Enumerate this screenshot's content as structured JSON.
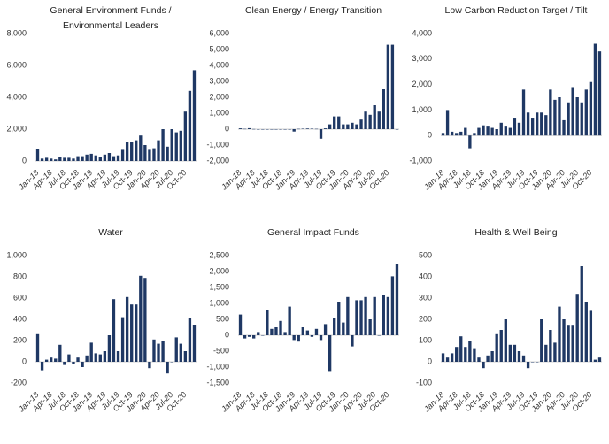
{
  "chart_data": [
    {
      "type": "bar",
      "title": "General  Environment Funds / Environmental Leaders",
      "color": "#1f3864",
      "categories": [
        "Jan-18",
        null,
        null,
        "Apr-18",
        null,
        null,
        "Jul-18",
        null,
        null,
        "Oct-18",
        null,
        null,
        "Jan-19",
        null,
        null,
        "Apr-19",
        null,
        null,
        "Jul-19",
        null,
        null,
        "Oct-19",
        null,
        null,
        "Jan-20",
        null,
        null,
        "Apr-20",
        null,
        null,
        "Jul-20",
        null,
        null,
        "Oct-20",
        null,
        null
      ],
      "values": [
        750,
        150,
        200,
        150,
        100,
        250,
        200,
        200,
        150,
        300,
        300,
        400,
        450,
        350,
        250,
        400,
        500,
        300,
        350,
        700,
        1200,
        1200,
        1300,
        1600,
        1000,
        700,
        800,
        1300,
        2000,
        900,
        2000,
        1800,
        1900,
        3100,
        4400,
        5700
      ],
      "ylim": [
        0,
        8000
      ],
      "yticks": [
        0,
        {
          "value": 2000,
          "label": "2,000"
        },
        {
          "value": 4000,
          "label": "4,000"
        },
        {
          "value": 6000,
          "label": "6,000"
        },
        {
          "value": 8000,
          "label": "8,000"
        }
      ]
    },
    {
      "type": "bar",
      "title": "Clean Energy / Energy Transition",
      "color": "#1f3864",
      "categories": [
        "Jan-18",
        null,
        null,
        "Apr-18",
        null,
        null,
        "Jul-18",
        null,
        null,
        "Oct-18",
        null,
        null,
        "Jan-19",
        null,
        null,
        "Apr-19",
        null,
        null,
        "Jul-19",
        null,
        null,
        "Oct-19",
        null,
        null,
        "Jan-20",
        null,
        null,
        "Apr-20",
        null,
        null,
        "Jul-20",
        null,
        null,
        "Oct-20",
        null,
        null
      ],
      "values": [
        50,
        20,
        60,
        10,
        0,
        0,
        0,
        0,
        0,
        0,
        0,
        0,
        -150,
        20,
        30,
        40,
        30,
        20,
        -600,
        50,
        300,
        800,
        800,
        300,
        300,
        400,
        300,
        600,
        1100,
        900,
        1500,
        1100,
        2500,
        5300,
        5300,
        0
      ],
      "ylim": [
        -2000,
        6000
      ],
      "yticks": [
        {
          "value": -2000,
          "label": "-2,000"
        },
        {
          "value": -1000,
          "label": "-1,000"
        },
        0,
        {
          "value": 1000,
          "label": "1,000"
        },
        {
          "value": 2000,
          "label": "2,000"
        },
        {
          "value": 3000,
          "label": "3,000"
        },
        {
          "value": 4000,
          "label": "4,000"
        },
        {
          "value": 5000,
          "label": "5,000"
        },
        {
          "value": 6000,
          "label": "6,000"
        }
      ]
    },
    {
      "type": "bar",
      "title": "Low Carbon Reduction Target / Tilt",
      "color": "#1f3864",
      "categories": [
        "Jan-18",
        null,
        null,
        "Apr-18",
        null,
        null,
        "Jul-18",
        null,
        null,
        "Oct-18",
        null,
        null,
        "Jan-19",
        null,
        null,
        "Apr-19",
        null,
        null,
        "Jul-19",
        null,
        null,
        "Oct-19",
        null,
        null,
        "Jan-20",
        null,
        null,
        "Apr-20",
        null,
        null,
        "Jul-20",
        null,
        null,
        "Oct-20",
        null,
        null
      ],
      "values": [
        100,
        1000,
        150,
        100,
        150,
        300,
        -500,
        100,
        300,
        400,
        350,
        300,
        250,
        500,
        350,
        300,
        700,
        500,
        1800,
        900,
        700,
        900,
        900,
        800,
        1800,
        1400,
        1500,
        600,
        1300,
        1900,
        1500,
        1300,
        1800,
        2100,
        3600,
        3300
      ],
      "ylim": [
        -1000,
        4000
      ],
      "yticks": [
        {
          "value": -1000,
          "label": "-1,000"
        },
        0,
        {
          "value": 1000,
          "label": "1,000"
        },
        {
          "value": 2000,
          "label": "2,000"
        },
        {
          "value": 3000,
          "label": "3,000"
        },
        {
          "value": 4000,
          "label": "4,000"
        }
      ]
    },
    {
      "type": "bar",
      "title": "Water",
      "color": "#1f3864",
      "categories": [
        "Jan-18",
        null,
        null,
        "Apr-18",
        null,
        null,
        "Jul-18",
        null,
        null,
        "Oct-18",
        null,
        null,
        "Jan-19",
        null,
        null,
        "Apr-19",
        null,
        null,
        "Jul-19",
        null,
        null,
        "Oct-19",
        null,
        null,
        "Jan-20",
        null,
        null,
        "Apr-20",
        null,
        null,
        "Jul-20",
        null,
        null,
        "Oct-20",
        null,
        null
      ],
      "values": [
        260,
        -80,
        20,
        40,
        30,
        160,
        -30,
        70,
        -20,
        40,
        -50,
        60,
        180,
        80,
        70,
        100,
        250,
        590,
        100,
        420,
        610,
        540,
        540,
        810,
        790,
        -60,
        210,
        170,
        200,
        -110,
        0,
        230,
        170,
        100,
        410,
        350
      ],
      "ylim": [
        -200,
        1000
      ],
      "yticks": [
        -200,
        0,
        200,
        400,
        600,
        800,
        {
          "value": 1000,
          "label": "1,000"
        }
      ]
    },
    {
      "type": "bar",
      "title": "General Impact Funds",
      "color": "#1f3864",
      "categories": [
        "Jan-18",
        null,
        null,
        "Apr-18",
        null,
        null,
        "Jul-18",
        null,
        null,
        "Oct-18",
        null,
        null,
        "Jan-19",
        null,
        null,
        "Apr-19",
        null,
        null,
        "Jul-19",
        null,
        null,
        "Oct-19",
        null,
        null,
        "Jan-20",
        null,
        null,
        "Apr-20",
        null,
        null,
        "Jul-20",
        null,
        null,
        "Oct-20",
        null,
        null
      ],
      "values": [
        650,
        -100,
        -50,
        -100,
        100,
        0,
        800,
        200,
        250,
        450,
        100,
        900,
        -150,
        -200,
        250,
        150,
        -50,
        200,
        -150,
        350,
        -1150,
        550,
        1050,
        400,
        1200,
        -350,
        1100,
        1100,
        1200,
        500,
        1200,
        0,
        1250,
        1200,
        1850,
        2250
      ],
      "ylim": [
        -1500,
        2500
      ],
      "yticks": [
        {
          "value": -1500,
          "label": "-1,500"
        },
        {
          "value": -1000,
          "label": "-1,000"
        },
        -500,
        0,
        500,
        {
          "value": 1000,
          "label": "1,000"
        },
        {
          "value": 1500,
          "label": "1,500"
        },
        {
          "value": 2000,
          "label": "2,000"
        },
        {
          "value": 2500,
          "label": "2,500"
        }
      ]
    },
    {
      "type": "bar",
      "title": "Health & Well Being",
      "color": "#1f3864",
      "categories": [
        "Jan-18",
        null,
        null,
        "Apr-18",
        null,
        null,
        "Jul-18",
        null,
        null,
        "Oct-18",
        null,
        null,
        "Jan-19",
        null,
        null,
        "Apr-19",
        null,
        null,
        "Jul-19",
        null,
        null,
        "Oct-19",
        null,
        null,
        "Jan-20",
        null,
        null,
        "Apr-20",
        null,
        null,
        "Jul-20",
        null,
        null,
        "Oct-20",
        null,
        null
      ],
      "values": [
        40,
        20,
        40,
        70,
        120,
        70,
        100,
        60,
        20,
        -30,
        30,
        50,
        130,
        150,
        200,
        80,
        80,
        50,
        30,
        -30,
        0,
        0,
        200,
        80,
        150,
        90,
        260,
        200,
        170,
        170,
        320,
        450,
        280,
        240,
        10,
        20
      ],
      "ylim": [
        -100,
        500
      ],
      "yticks": [
        -100,
        0,
        100,
        200,
        300,
        400,
        500
      ]
    }
  ]
}
